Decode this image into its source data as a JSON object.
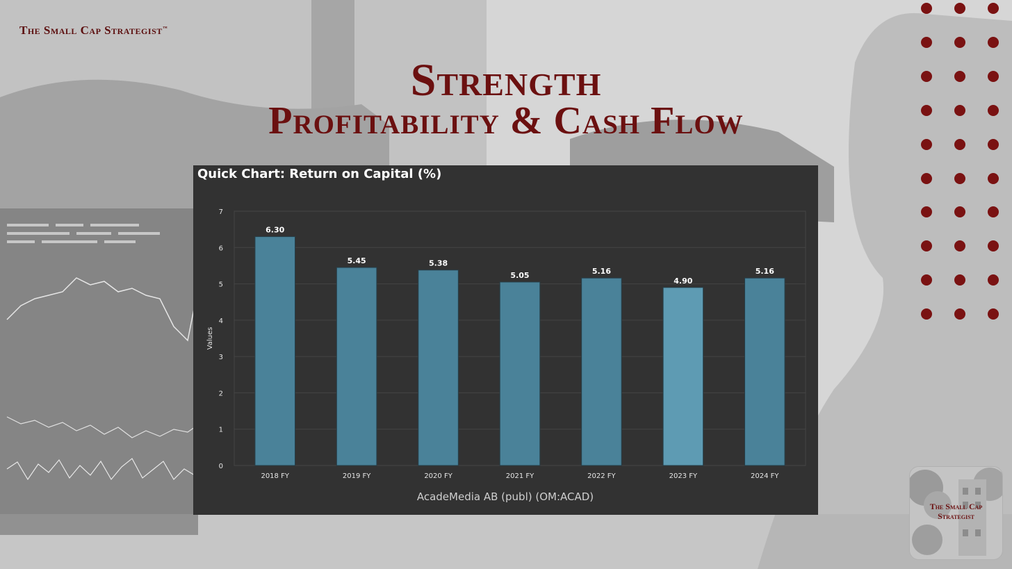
{
  "brand": {
    "name": "The Small Cap Strategist",
    "tm": "™"
  },
  "title": {
    "line1": "Strength",
    "line2": "Profitability & Cash Flow"
  },
  "colors": {
    "accent": "#6b1010",
    "panel": "#323232",
    "bar": "#4a8299",
    "bar_highlight": "#5e9bb3"
  },
  "chart_data": {
    "type": "bar",
    "title": "Quick Chart: Return on Capital (%)",
    "categories": [
      "2018 FY",
      "2019 FY",
      "2020 FY",
      "2021 FY",
      "2022 FY",
      "2023 FY",
      "2024 FY"
    ],
    "values": [
      6.3,
      5.45,
      5.38,
      5.05,
      5.16,
      4.9,
      5.16
    ],
    "value_labels": [
      "6.30",
      "5.45",
      "5.38",
      "5.05",
      "5.16",
      "4.90",
      "5.16"
    ],
    "highlight": "2023 FY",
    "ylabel": "Values",
    "xlabel": "AcadeMedia AB (publ) (OM:ACAD)",
    "ylim": [
      0,
      7
    ],
    "yticks": [
      "0",
      "1",
      "2",
      "3",
      "4",
      "5",
      "6",
      "7"
    ],
    "grid": true
  },
  "badge": {
    "line1": "The Small Cap",
    "line2": "Strategist"
  }
}
